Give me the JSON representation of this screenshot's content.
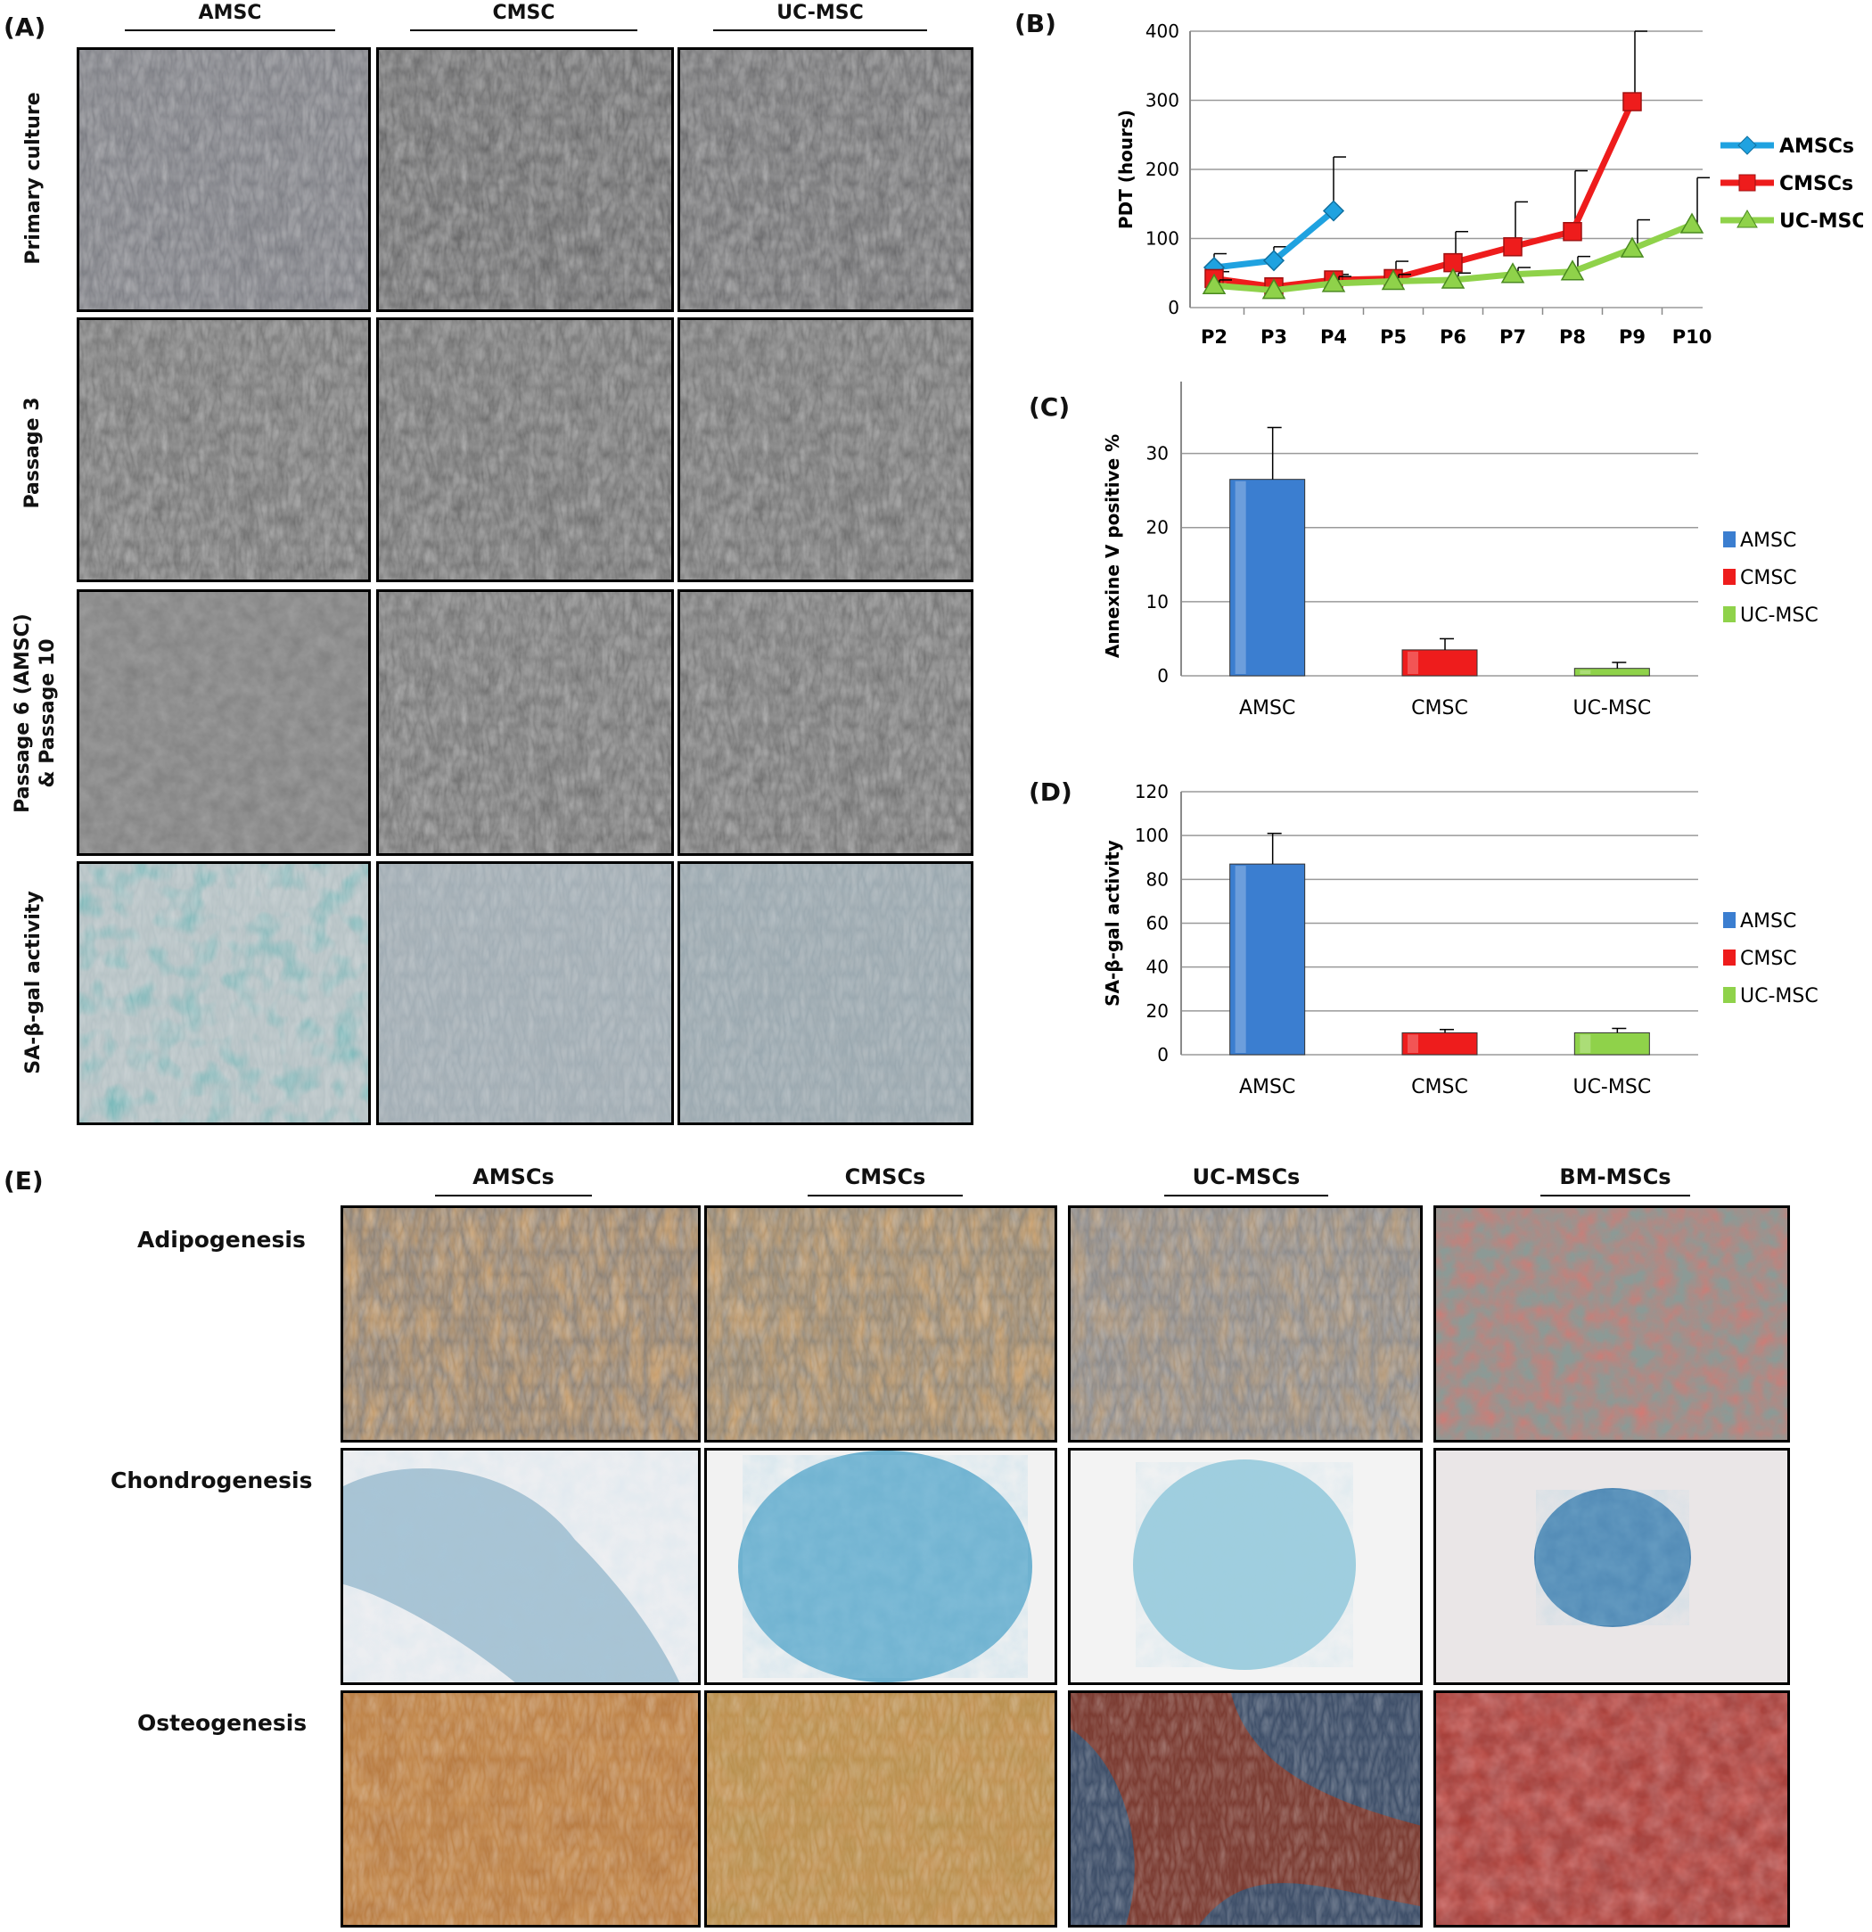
{
  "panel_labels": {
    "a": "(A)",
    "b": "(B)",
    "c": "(C)",
    "d": "(D)",
    "e": "(E)"
  },
  "panel_a": {
    "columns": [
      "AMSC",
      "CMSC",
      "UC-MSC"
    ],
    "rows": [
      "Primary culture",
      "Passage  3",
      "Passage  6 (AMSC)",
      "& Passage 10",
      "SA-β-gal activity"
    ]
  },
  "panel_e": {
    "columns": [
      "AMSCs",
      "CMSCs",
      "UC-MSCs",
      "BM-MSCs"
    ],
    "rows": [
      "Adipogenesis",
      "Chondrogenesis",
      "Osteogenesis"
    ]
  },
  "chart_data": [
    {
      "type": "line",
      "panel": "(B)",
      "ylabel": "PDT (hours)",
      "categories": [
        "P2",
        "P3",
        "P4",
        "P5",
        "P6",
        "P7",
        "P8",
        "P9",
        "P10"
      ],
      "yticks": [
        "0",
        "100",
        "200",
        "300",
        "400"
      ],
      "ylim": [
        0,
        400
      ],
      "grid": true,
      "legend": "right",
      "series": [
        {
          "name": "AMSCs",
          "color": "#1fa2e0",
          "marker": "diamond",
          "values": [
            58,
            68,
            140,
            null,
            null,
            null,
            null,
            null,
            null
          ],
          "errors": [
            20,
            20,
            78,
            null,
            null,
            null,
            null,
            null,
            null
          ]
        },
        {
          "name": "CMSCs",
          "color": "#ee1c1c",
          "marker": "square",
          "values": [
            42,
            30,
            40,
            42,
            65,
            88,
            110,
            298,
            null
          ],
          "errors": [
            10,
            5,
            8,
            25,
            45,
            65,
            88,
            110,
            null
          ]
        },
        {
          "name": "UC-MSCs",
          "color": "#8fd24a",
          "marker": "triangle",
          "values": [
            32,
            25,
            35,
            38,
            40,
            48,
            52,
            85,
            120
          ],
          "errors": [
            8,
            5,
            10,
            10,
            10,
            10,
            22,
            42,
            68
          ]
        }
      ]
    },
    {
      "type": "bar",
      "panel": "(C)",
      "ylabel": "Annexine V positive %",
      "categories": [
        "AMSC",
        "CMSC",
        "UC-MSC"
      ],
      "values": [
        26.5,
        3.5,
        1.0
      ],
      "errors": [
        7.0,
        1.5,
        0.8
      ],
      "colors": [
        "#3b7ed0",
        "#ee1c1c",
        "#8fd24a"
      ],
      "yticks": [
        "0",
        "10",
        "20",
        "30"
      ],
      "ylim": [
        0,
        35
      ],
      "grid": true,
      "legend": "right",
      "legend_entries": [
        "AMSC",
        "CMSC",
        "UC-MSC"
      ]
    },
    {
      "type": "bar",
      "panel": "(D)",
      "ylabel": "SA-β-gal activity",
      "categories": [
        "AMSC",
        "CMSC",
        "UC-MSC"
      ],
      "values": [
        87,
        10,
        10
      ],
      "errors": [
        14,
        1.5,
        2
      ],
      "colors": [
        "#3b7ed0",
        "#ee1c1c",
        "#8fd24a"
      ],
      "yticks": [
        "0",
        "20",
        "40",
        "60",
        "80",
        "100",
        "120"
      ],
      "ylim": [
        0,
        120
      ],
      "grid": true,
      "legend": "right",
      "legend_entries": [
        "AMSC",
        "CMSC",
        "UC-MSC"
      ]
    }
  ]
}
